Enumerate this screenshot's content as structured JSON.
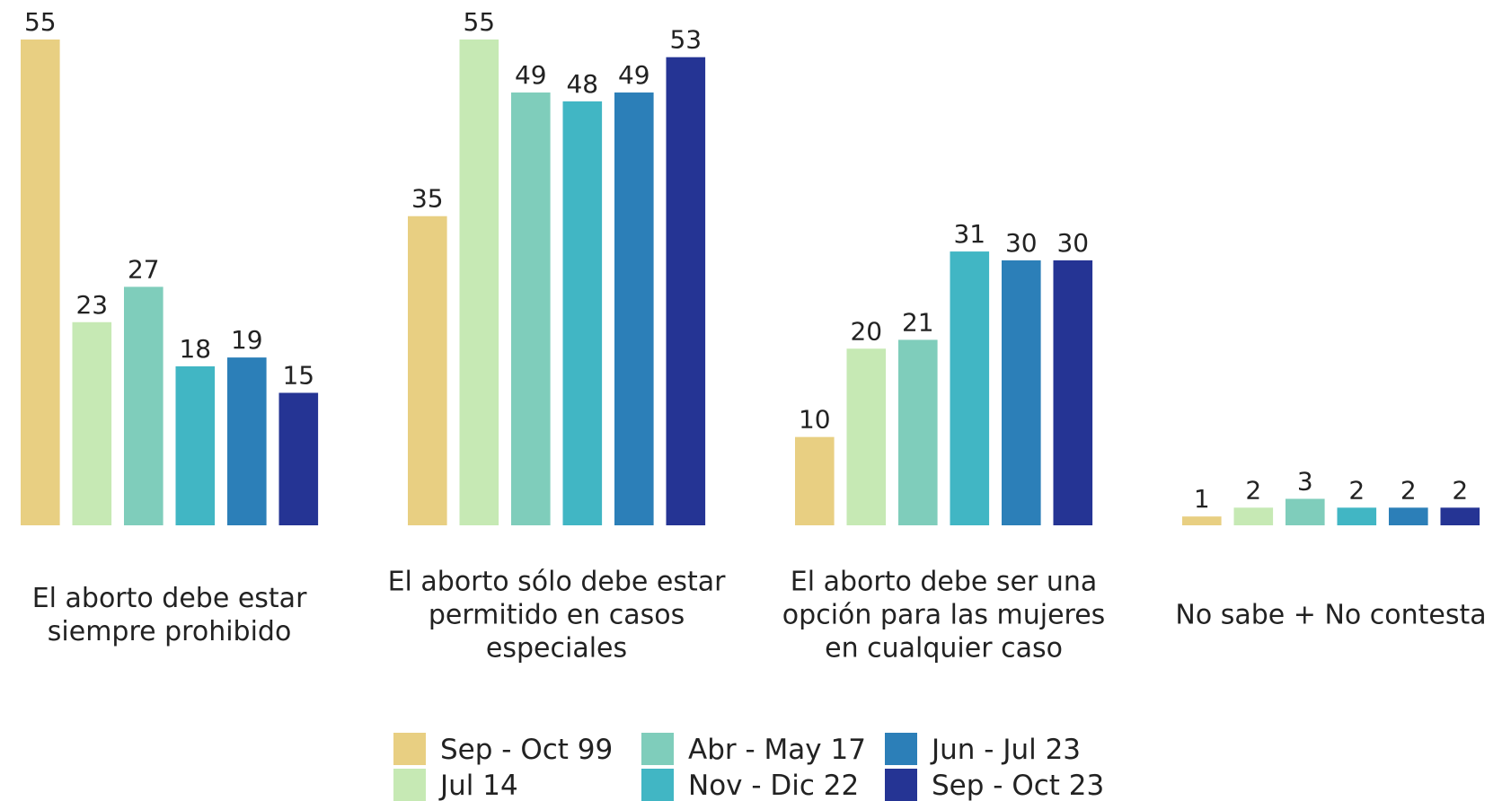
{
  "chart_data": {
    "type": "bar",
    "categories": [
      "El aborto debe estar siempre prohibido",
      "El aborto sólo debe estar permitido en casos especiales",
      "El aborto debe ser una opción para las mujeres en cualquier caso",
      "No sabe + No contesta"
    ],
    "series": [
      {
        "name": "Sep - Oct 99",
        "color": "#e8cf82",
        "values": [
          55,
          35,
          10,
          1
        ]
      },
      {
        "name": "Jul 14",
        "color": "#c6e9b4",
        "values": [
          23,
          55,
          20,
          2
        ]
      },
      {
        "name": "Abr - May 17",
        "color": "#7fcdbb",
        "values": [
          27,
          49,
          21,
          3
        ]
      },
      {
        "name": "Nov - Dic 22",
        "color": "#41b6c4",
        "values": [
          18,
          48,
          31,
          2
        ]
      },
      {
        "name": "Jun - Jul 23",
        "color": "#2c7fb8",
        "values": [
          19,
          49,
          30,
          2
        ]
      },
      {
        "name": "Sep - Oct 23",
        "color": "#253494",
        "values": [
          15,
          53,
          30,
          2
        ]
      }
    ],
    "ylim": [
      0,
      55
    ],
    "legend": "bottom"
  }
}
